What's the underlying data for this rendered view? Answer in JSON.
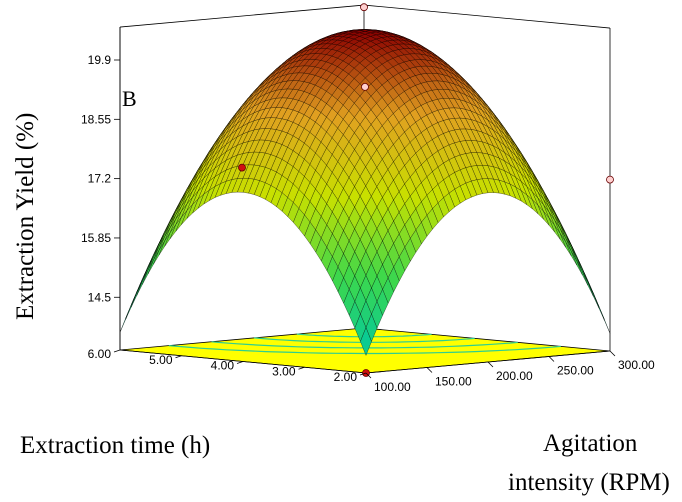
{
  "chart_data": {
    "type": "surface3d",
    "panel_label": "B",
    "xlabel": "Agitation intensity (RPM)",
    "xlabel_lines": [
      "Agitation",
      "intensity (RPM)"
    ],
    "ylabel": "Extraction time (h)",
    "zlabel": "Extraction Yield (%)",
    "x_ticks": [
      "100.00",
      "150.00",
      "200.00",
      "250.00",
      "300.00"
    ],
    "y_ticks": [
      "2.00",
      "3.00",
      "4.00",
      "5.00",
      "6.00"
    ],
    "z_ticks": [
      "14.5",
      "15.85",
      "17.2",
      "18.55",
      "19.9"
    ],
    "xlim": [
      100,
      300
    ],
    "ylim": [
      2,
      6
    ],
    "zlim": [
      13.3,
      19.9
    ],
    "surface_model": {
      "center_x": 200,
      "center_y": 4,
      "z_max": 20.6,
      "coef_x": 3.45,
      "coef_y": 3.45
    },
    "design_points": [
      {
        "x": 200,
        "y": 6,
        "z": 17.2
      },
      {
        "x": 100,
        "y": 2,
        "z": 13.3
      },
      {
        "x": 300,
        "y": 2,
        "z": 17.2
      },
      {
        "x": 300,
        "y": 6,
        "z": 20.6
      },
      {
        "x": 200,
        "y": 4,
        "z": 19.3
      }
    ],
    "colors": {
      "surface_low": "#00c8a0",
      "surface_mid1": "#3fd84a",
      "surface_mid2": "#c8e000",
      "surface_mid3": "#e0a020",
      "surface_high": "#8b0000",
      "floor": "#ffff00",
      "contour": "#2fcf8f",
      "mesh": "#000000"
    },
    "grid": false
  }
}
